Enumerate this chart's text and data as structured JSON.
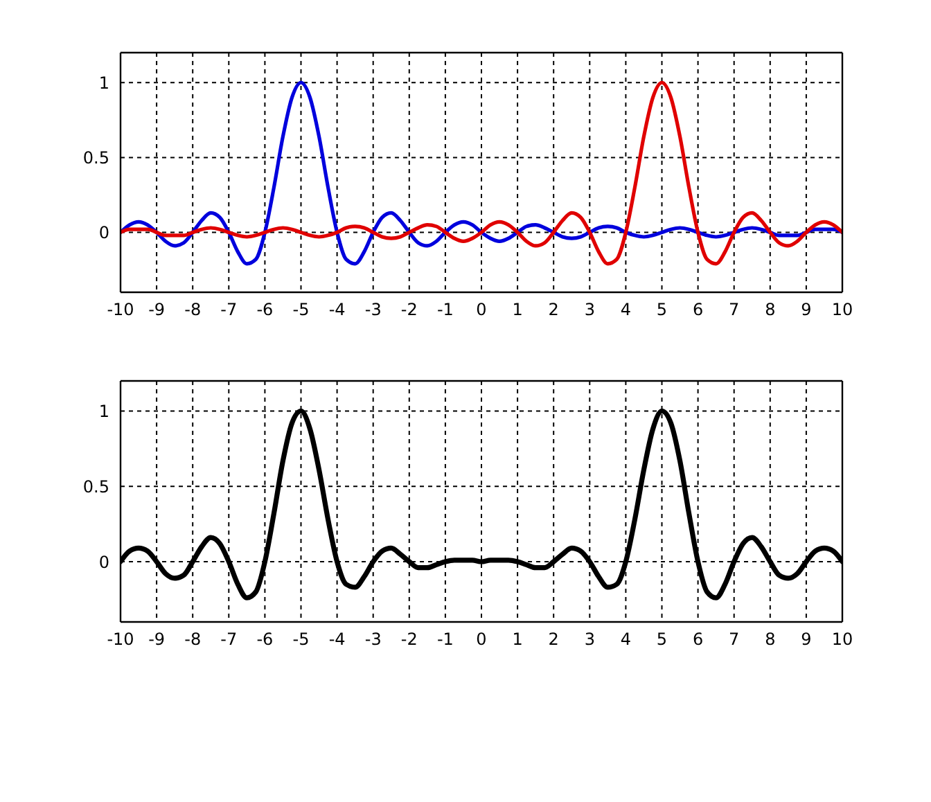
{
  "chart_data": [
    {
      "type": "line",
      "x": [
        -10,
        -9.75,
        -9.5,
        -9.25,
        -9,
        -8.75,
        -8.5,
        -8.25,
        -8,
        -7.75,
        -7.5,
        -7.25,
        -7,
        -6.75,
        -6.5,
        -6.25,
        -6,
        -5.75,
        -5.5,
        -5.25,
        -5,
        -4.75,
        -4.5,
        -4.25,
        -4,
        -3.75,
        -3.5,
        -3.25,
        -3,
        -2.75,
        -2.5,
        -2.25,
        -2,
        -1.75,
        -1.5,
        -1.25,
        -1,
        -0.75,
        -0.5,
        -0.25,
        0,
        0.25,
        0.5,
        0.75,
        1,
        1.25,
        1.5,
        1.75,
        2,
        2.25,
        2.5,
        2.75,
        3,
        3.25,
        3.5,
        3.75,
        4,
        4.25,
        4.5,
        4.75,
        5,
        5.25,
        5.5,
        5.75,
        6,
        6.25,
        6.5,
        6.75,
        7,
        7.25,
        7.5,
        7.75,
        8,
        8.25,
        8.5,
        8.75,
        9,
        9.25,
        9.5,
        9.75,
        10
      ],
      "series": [
        {
          "color": "#0000dd",
          "values": [
            0,
            0.05,
            0.07,
            0.05,
            0,
            -0.06,
            -0.09,
            -0.07,
            0,
            0.08,
            0.13,
            0.1,
            0,
            -0.13,
            -0.21,
            -0.18,
            0,
            0.3,
            0.64,
            0.9,
            1,
            0.9,
            0.64,
            0.3,
            0,
            -0.18,
            -0.21,
            -0.13,
            0,
            0.1,
            0.13,
            0.08,
            0,
            -0.07,
            -0.09,
            -0.06,
            0,
            0.05,
            0.07,
            0.05,
            0,
            -0.04,
            -0.06,
            -0.04,
            0,
            0.04,
            0.05,
            0.03,
            0,
            -0.03,
            -0.04,
            -0.03,
            0,
            0.03,
            0.04,
            0.03,
            0,
            -0.02,
            -0.03,
            -0.02,
            0,
            0.02,
            0.03,
            0.02,
            0,
            -0.02,
            -0.03,
            -0.02,
            0,
            0.02,
            0.03,
            0.02,
            0,
            -0.02,
            -0.02,
            -0.02,
            0,
            0.02,
            0.02,
            0.02,
            0
          ]
        },
        {
          "color": "#e00000",
          "values": [
            0,
            0.02,
            0.02,
            0.02,
            0,
            -0.02,
            -0.02,
            -0.02,
            0,
            0.02,
            0.03,
            0.02,
            0,
            -0.02,
            -0.03,
            -0.02,
            0,
            0.02,
            0.03,
            0.02,
            0,
            -0.02,
            -0.03,
            -0.02,
            0,
            0.03,
            0.04,
            0.03,
            0,
            -0.03,
            -0.04,
            -0.03,
            0,
            0.03,
            0.05,
            0.04,
            0,
            -0.04,
            -0.06,
            -0.04,
            0,
            0.05,
            0.07,
            0.05,
            0,
            -0.06,
            -0.09,
            -0.07,
            0,
            0.08,
            0.13,
            0.1,
            0,
            -0.13,
            -0.21,
            -0.18,
            0,
            0.3,
            0.64,
            0.9,
            1,
            0.9,
            0.64,
            0.3,
            0,
            -0.18,
            -0.21,
            -0.13,
            0,
            0.1,
            0.13,
            0.08,
            0,
            -0.07,
            -0.09,
            -0.06,
            0,
            0.05,
            0.07,
            0.05,
            0
          ]
        }
      ],
      "xlim": [
        -10,
        10
      ],
      "xticks": [
        -10,
        -9,
        -8,
        -7,
        -6,
        -5,
        -4,
        -3,
        -2,
        -1,
        0,
        1,
        2,
        3,
        4,
        5,
        6,
        7,
        8,
        9,
        10
      ],
      "ylim": [
        -0.4,
        1.2
      ],
      "yticks": [
        0,
        0.5,
        1
      ],
      "grid": true
    },
    {
      "type": "line",
      "x": [
        -10,
        -9.75,
        -9.5,
        -9.25,
        -9,
        -8.75,
        -8.5,
        -8.25,
        -8,
        -7.75,
        -7.5,
        -7.25,
        -7,
        -6.75,
        -6.5,
        -6.25,
        -6,
        -5.75,
        -5.5,
        -5.25,
        -5,
        -4.75,
        -4.5,
        -4.25,
        -4,
        -3.75,
        -3.5,
        -3.25,
        -3,
        -2.75,
        -2.5,
        -2.25,
        -2,
        -1.75,
        -1.5,
        -1.25,
        -1,
        -0.75,
        -0.5,
        -0.25,
        0,
        0.25,
        0.5,
        0.75,
        1,
        1.25,
        1.5,
        1.75,
        2,
        2.25,
        2.5,
        2.75,
        3,
        3.25,
        3.5,
        3.75,
        4,
        4.25,
        4.5,
        4.75,
        5,
        5.25,
        5.5,
        5.75,
        6,
        6.25,
        6.5,
        6.75,
        7,
        7.25,
        7.5,
        7.75,
        8,
        8.25,
        8.5,
        8.75,
        9,
        9.25,
        9.5,
        9.75,
        10
      ],
      "series": [
        {
          "color": "#000000",
          "values": [
            0,
            0.07,
            0.09,
            0.07,
            0,
            -0.08,
            -0.11,
            -0.09,
            0,
            0.1,
            0.16,
            0.12,
            0,
            -0.15,
            -0.24,
            -0.2,
            0,
            0.32,
            0.67,
            0.92,
            1,
            0.88,
            0.61,
            0.28,
            0,
            -0.15,
            -0.17,
            -0.1,
            0,
            0.07,
            0.09,
            0.05,
            0,
            -0.04,
            -0.04,
            -0.02,
            0,
            0.01,
            0.01,
            0.01,
            0,
            0.01,
            0.01,
            0.01,
            0,
            -0.02,
            -0.04,
            -0.04,
            0,
            0.05,
            0.09,
            0.07,
            0,
            -0.1,
            -0.17,
            -0.15,
            0,
            0.28,
            0.61,
            0.88,
            1,
            0.92,
            0.67,
            0.32,
            0,
            -0.2,
            -0.24,
            -0.15,
            0,
            0.12,
            0.16,
            0.1,
            0,
            -0.09,
            -0.11,
            -0.08,
            0,
            0.07,
            0.09,
            0.07,
            0
          ]
        }
      ],
      "xlim": [
        -10,
        10
      ],
      "xticks": [
        -10,
        -9,
        -8,
        -7,
        -6,
        -5,
        -4,
        -3,
        -2,
        -1,
        0,
        1,
        2,
        3,
        4,
        5,
        6,
        7,
        8,
        9,
        10
      ],
      "ylim": [
        -0.4,
        1.2
      ],
      "yticks": [
        0,
        0.5,
        1
      ],
      "grid": true
    }
  ]
}
